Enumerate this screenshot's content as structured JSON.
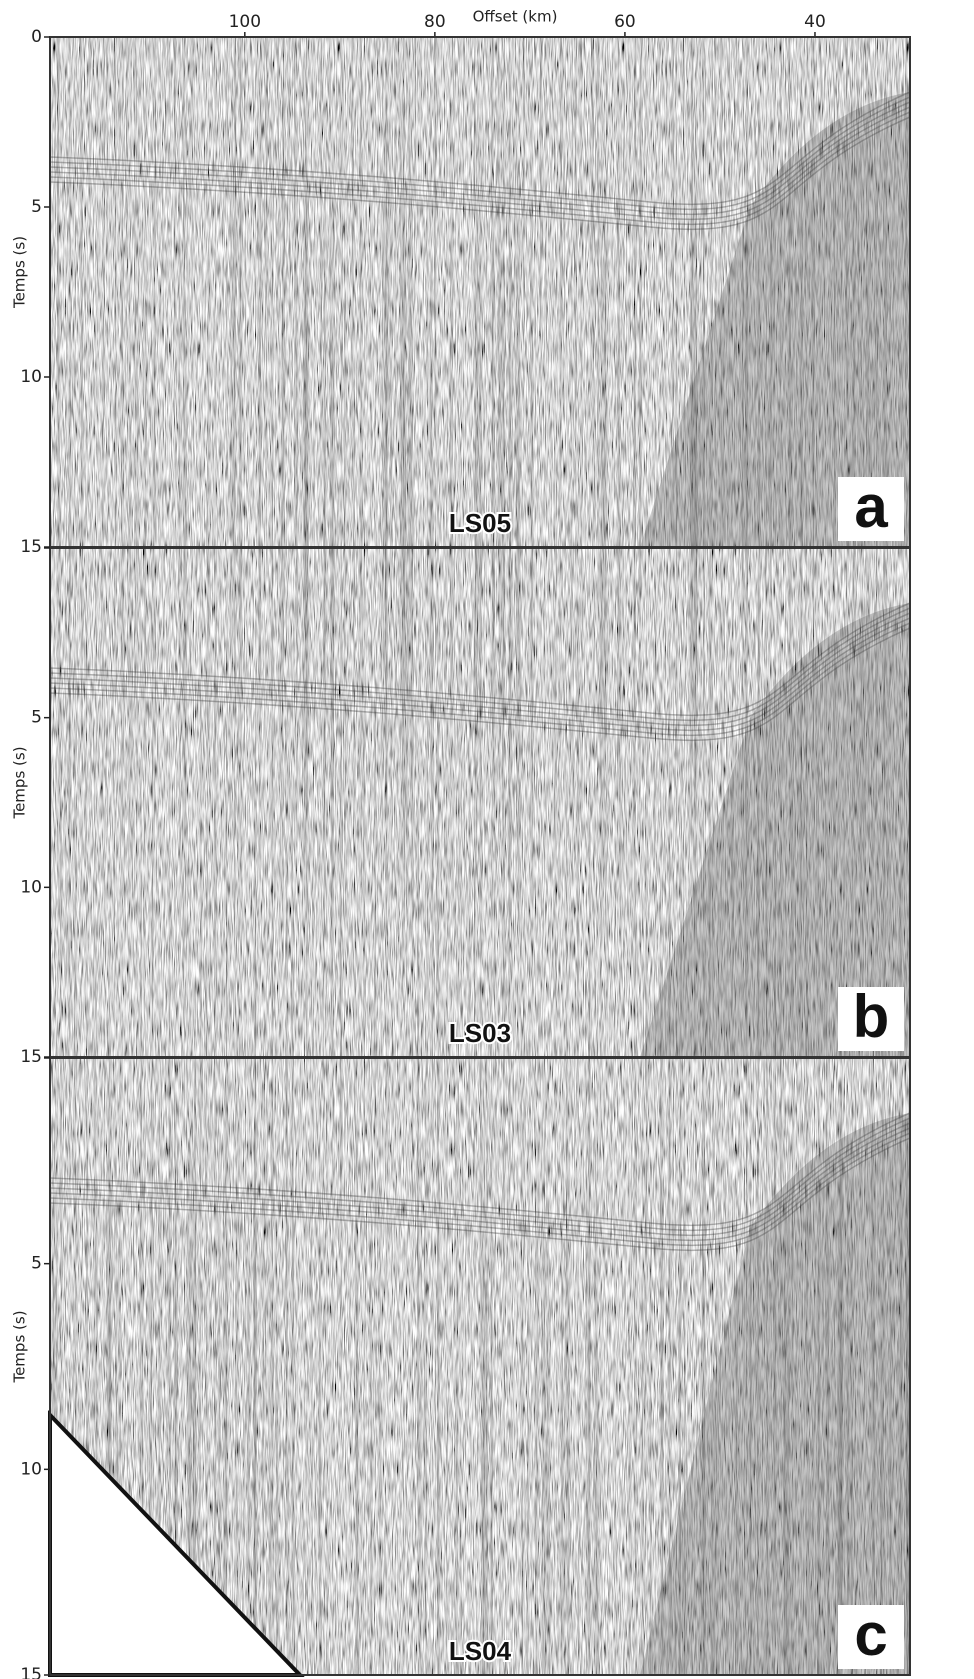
{
  "x_axis": {
    "label": "Offset (km)",
    "ticks": [
      100,
      80,
      60,
      40
    ],
    "range": [
      120.5,
      30
    ]
  },
  "y_axis": {
    "label": "Temps (s)",
    "ticks": [
      0,
      5,
      10,
      15
    ],
    "range": [
      0,
      15
    ]
  },
  "panels": [
    {
      "letter": "a",
      "line": "LS05"
    },
    {
      "letter": "b",
      "line": "LS03"
    },
    {
      "letter": "c",
      "line": "LS04"
    }
  ]
}
